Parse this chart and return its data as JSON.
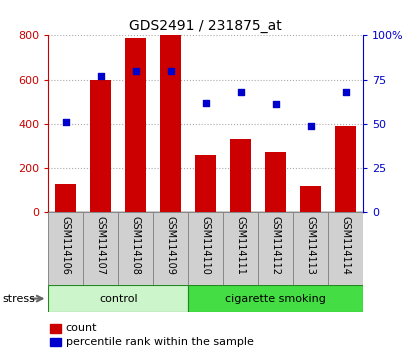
{
  "title": "GDS2491 / 231875_at",
  "samples": [
    "GSM114106",
    "GSM114107",
    "GSM114108",
    "GSM114109",
    "GSM114110",
    "GSM114111",
    "GSM114112",
    "GSM114113",
    "GSM114114"
  ],
  "counts": [
    130,
    600,
    790,
    800,
    260,
    330,
    275,
    120,
    390
  ],
  "percentile_ranks": [
    51,
    77,
    80,
    80,
    62,
    68,
    61,
    49,
    68
  ],
  "groups": [
    {
      "label": "control",
      "start": 0,
      "end": 4,
      "color": "#ccf5cc"
    },
    {
      "label": "cigarette smoking",
      "start": 4,
      "end": 9,
      "color": "#44dd44"
    }
  ],
  "bar_color": "#cc0000",
  "dot_color": "#0000cc",
  "ylim_left": [
    0,
    800
  ],
  "ylim_right": [
    0,
    100
  ],
  "yticks_left": [
    0,
    200,
    400,
    600,
    800
  ],
  "yticks_right": [
    0,
    25,
    50,
    75,
    100
  ],
  "ytick_labels_right": [
    "0",
    "25",
    "50",
    "75",
    "100%"
  ],
  "grid_color": "#aaaaaa",
  "bg_color": "#ffffff",
  "stress_label": "stress",
  "legend_count_label": "count",
  "legend_pct_label": "percentile rank within the sample",
  "label_strip_color": "#d0d0d0",
  "label_strip_edge": "#888888"
}
